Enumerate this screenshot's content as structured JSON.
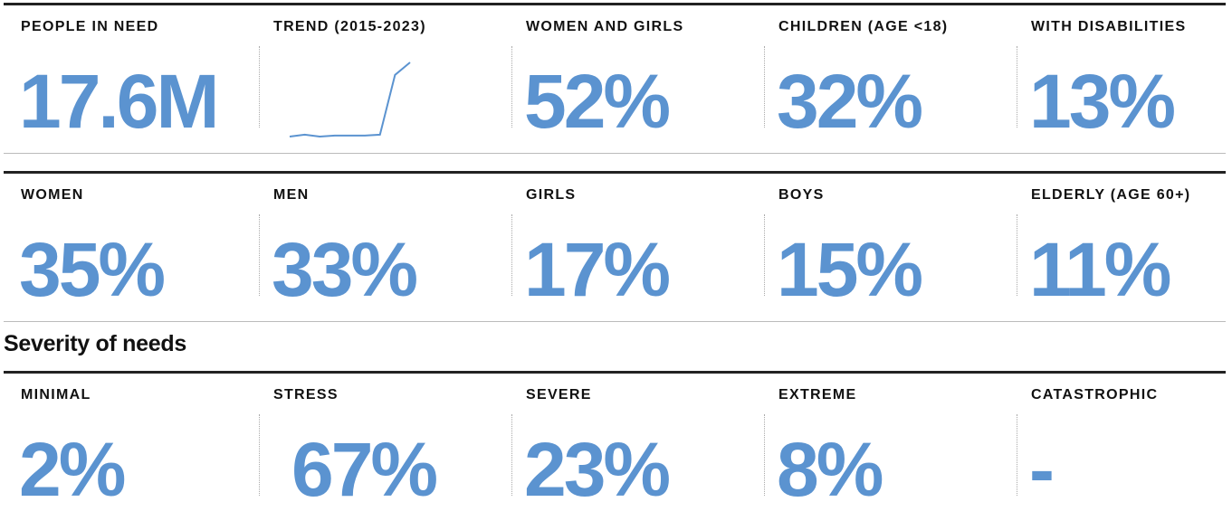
{
  "rows": [
    {
      "cards": [
        {
          "label": "PEOPLE IN NEED",
          "value": "17.6M"
        },
        {
          "label": "TREND (2015-2023)",
          "trend": {
            "type": "line",
            "color": "#5b93d0",
            "values": [
              2.2,
              2.6,
              2.2,
              2.4,
              2.4,
              2.4,
              2.6,
              15.0,
              17.6
            ]
          }
        },
        {
          "label": "WOMEN AND GIRLS",
          "value": "52%"
        },
        {
          "label": "CHILDREN (AGE <18)",
          "value": "32%"
        },
        {
          "label": "WITH DISABILITIES",
          "value": "13%"
        }
      ]
    },
    {
      "cards": [
        {
          "label": "WOMEN",
          "value": "35%"
        },
        {
          "label": "MEN",
          "value": "33%"
        },
        {
          "label": "GIRLS",
          "value": "17%"
        },
        {
          "label": "BOYS",
          "value": "15%"
        },
        {
          "label": "ELDERLY (AGE 60+)",
          "value": "11%"
        }
      ]
    }
  ],
  "severity": {
    "title": "Severity of needs",
    "cards": [
      {
        "label": "MINIMAL",
        "value": "2%"
      },
      {
        "label": "STRESS",
        "value": "67%"
      },
      {
        "label": "SEVERE",
        "value": "23%"
      },
      {
        "label": "EXTREME",
        "value": "8%"
      },
      {
        "label": "CATASTROPHIC",
        "value": "-"
      }
    ]
  }
}
